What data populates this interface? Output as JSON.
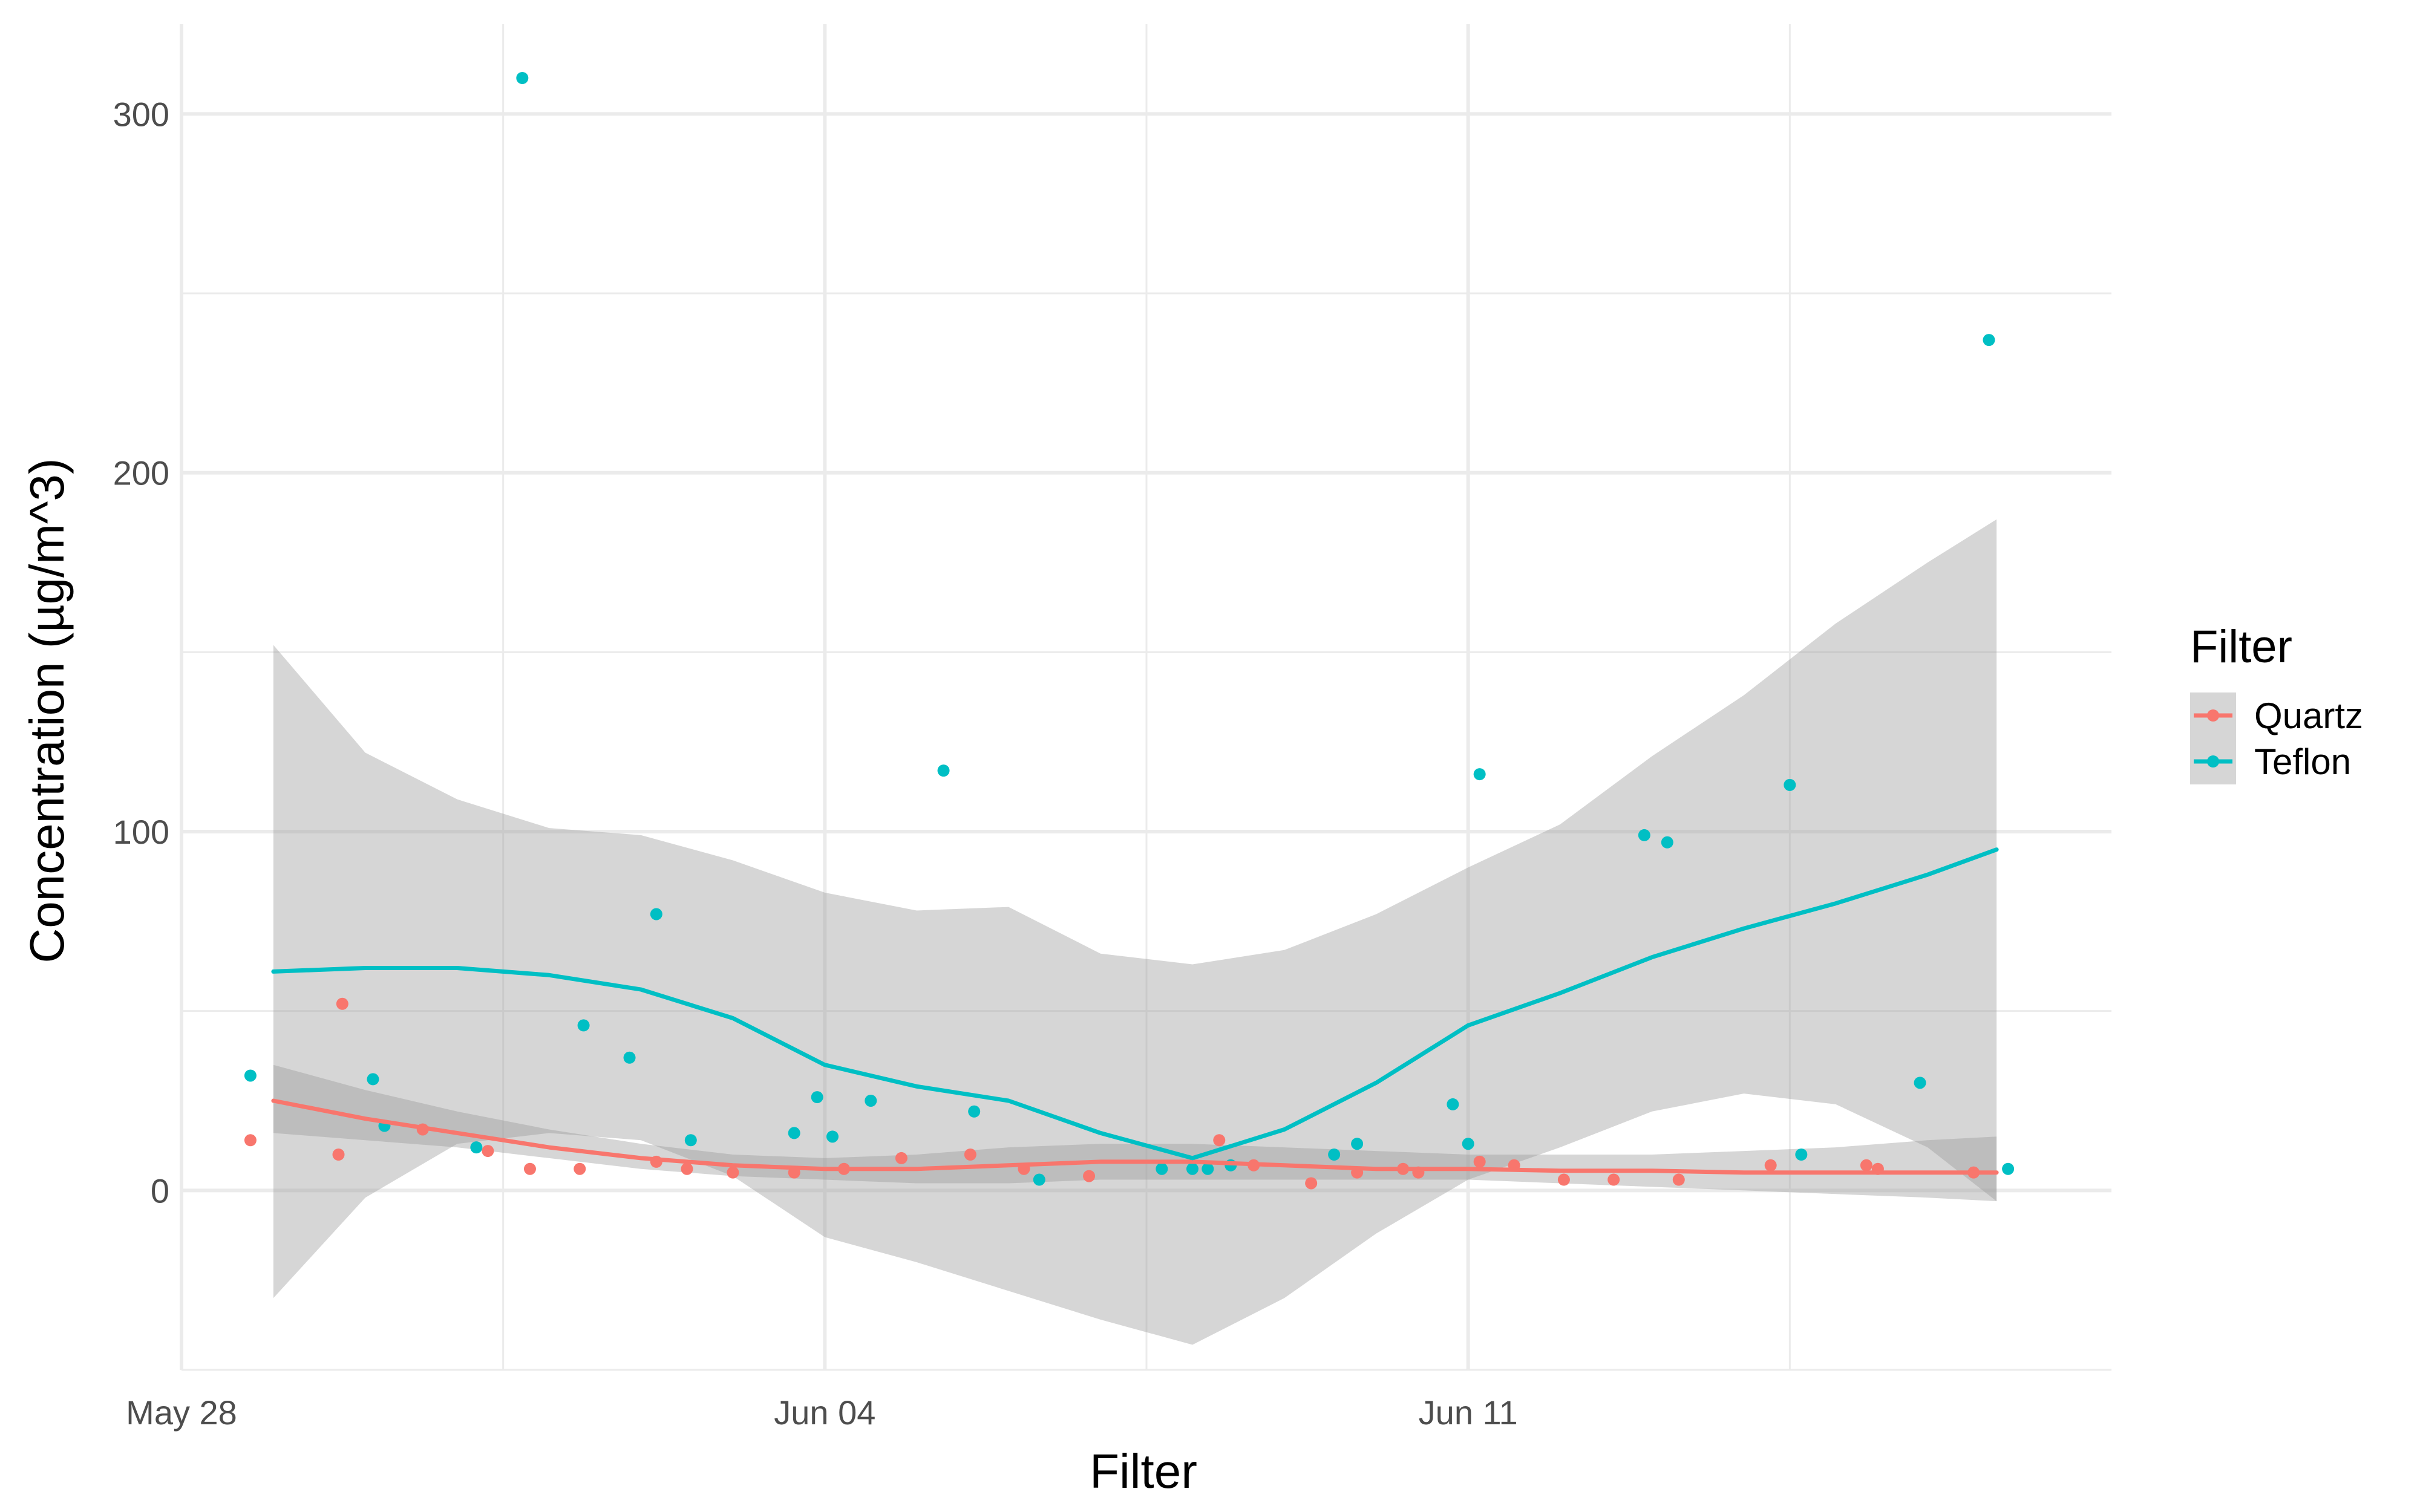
{
  "chart_data": {
    "type": "scatter",
    "title": "",
    "xlabel": "Filter",
    "ylabel": "Concentration (µg/m^3)",
    "x_type": "date",
    "xlim": [
      "2025-05-28",
      "2025-06-18"
    ],
    "ylim": [
      -50,
      325
    ],
    "x_ticks": [
      "2025-05-28",
      "2025-06-04",
      "2025-06-11"
    ],
    "x_tick_labels": [
      "May 28",
      "Jun 04",
      "Jun 11"
    ],
    "y_ticks": [
      0,
      100,
      200,
      300
    ],
    "y_tick_labels": [
      "0",
      "100",
      "200",
      "300"
    ],
    "grid": true,
    "legend": {
      "title": "Filter",
      "position": "right",
      "entries": [
        "Quartz",
        "Teflon"
      ]
    },
    "series": [
      {
        "name": "Quartz",
        "color": "#F8766D",
        "points": [
          {
            "x": "2025-05-28T18:00",
            "y": 14
          },
          {
            "x": "2025-05-29T17:00",
            "y": 10
          },
          {
            "x": "2025-05-29T18:00",
            "y": 52
          },
          {
            "x": "2025-05-30T15:00",
            "y": 17
          },
          {
            "x": "2025-05-31T08:00",
            "y": 11
          },
          {
            "x": "2025-05-31T19:00",
            "y": 6
          },
          {
            "x": "2025-06-01T08:00",
            "y": 6
          },
          {
            "x": "2025-06-02T04:00",
            "y": 8
          },
          {
            "x": "2025-06-02T12:00",
            "y": 6
          },
          {
            "x": "2025-06-03T00:00",
            "y": 5
          },
          {
            "x": "2025-06-03T16:00",
            "y": 5
          },
          {
            "x": "2025-06-04T05:00",
            "y": 6
          },
          {
            "x": "2025-06-04T20:00",
            "y": 9
          },
          {
            "x": "2025-06-05T14:00",
            "y": 10
          },
          {
            "x": "2025-06-06T04:00",
            "y": 6
          },
          {
            "x": "2025-06-06T21:00",
            "y": 4
          },
          {
            "x": "2025-06-08T07:00",
            "y": 14
          },
          {
            "x": "2025-06-08T16:00",
            "y": 7
          },
          {
            "x": "2025-06-09T07:00",
            "y": 2
          },
          {
            "x": "2025-06-09T19:00",
            "y": 5
          },
          {
            "x": "2025-06-10T07:00",
            "y": 6
          },
          {
            "x": "2025-06-10T11:00",
            "y": 5
          },
          {
            "x": "2025-06-11T03:00",
            "y": 8
          },
          {
            "x": "2025-06-11T12:00",
            "y": 7
          },
          {
            "x": "2025-06-12T01:00",
            "y": 3
          },
          {
            "x": "2025-06-12T14:00",
            "y": 3
          },
          {
            "x": "2025-06-13T07:00",
            "y": 3
          },
          {
            "x": "2025-06-14T07:00",
            "y": 7
          },
          {
            "x": "2025-06-15T08:00",
            "y": 7
          },
          {
            "x": "2025-06-15T11:00",
            "y": 6
          },
          {
            "x": "2025-06-16T12:00",
            "y": 5
          }
        ],
        "smooth_x": [
          "2025-05-29T00:00",
          "2025-05-30T00:00",
          "2025-05-31T00:00",
          "2025-06-01T00:00",
          "2025-06-02T00:00",
          "2025-06-03T00:00",
          "2025-06-04T00:00",
          "2025-06-05T00:00",
          "2025-06-06T00:00",
          "2025-06-07T00:00",
          "2025-06-08T00:00",
          "2025-06-09T00:00",
          "2025-06-10T00:00",
          "2025-06-11T00:00",
          "2025-06-12T00:00",
          "2025-06-13T00:00",
          "2025-06-14T00:00",
          "2025-06-15T00:00",
          "2025-06-16T00:00",
          "2025-06-16T18:00"
        ],
        "smooth_y": [
          25,
          20,
          16,
          12,
          9,
          7,
          6,
          6,
          7,
          8,
          8,
          7,
          6,
          6,
          5.5,
          5.5,
          5,
          5,
          5,
          5
        ],
        "ci_lower": [
          16,
          14,
          12,
          9,
          6,
          4,
          3,
          2,
          2,
          3,
          3,
          3,
          3,
          3,
          2,
          1,
          0,
          -1,
          -2,
          -3
        ],
        "ci_upper": [
          35,
          28,
          22,
          17,
          13,
          10,
          9,
          10,
          12,
          13,
          13,
          12,
          11,
          10,
          10,
          10,
          11,
          12,
          14,
          15
        ]
      },
      {
        "name": "Teflon",
        "color": "#00BFC4",
        "points": [
          {
            "x": "2025-05-28T18:00",
            "y": 32
          },
          {
            "x": "2025-05-30T02:00",
            "y": 31
          },
          {
            "x": "2025-05-30T05:00",
            "y": 18
          },
          {
            "x": "2025-05-31T05:00",
            "y": 12
          },
          {
            "x": "2025-05-31T17:00",
            "y": 310
          },
          {
            "x": "2025-06-01T09:00",
            "y": 46
          },
          {
            "x": "2025-06-01T21:00",
            "y": 37
          },
          {
            "x": "2025-06-02T04:00",
            "y": 77
          },
          {
            "x": "2025-06-02T13:00",
            "y": 14
          },
          {
            "x": "2025-06-03T16:00",
            "y": 16
          },
          {
            "x": "2025-06-03T22:00",
            "y": 26
          },
          {
            "x": "2025-06-04T02:00",
            "y": 15
          },
          {
            "x": "2025-06-04T12:00",
            "y": 25
          },
          {
            "x": "2025-06-05T07:00",
            "y": 117
          },
          {
            "x": "2025-06-05T15:00",
            "y": 22
          },
          {
            "x": "2025-06-06T08:00",
            "y": 3
          },
          {
            "x": "2025-06-07T16:00",
            "y": 6
          },
          {
            "x": "2025-06-08T00:00",
            "y": 6
          },
          {
            "x": "2025-06-08T04:00",
            "y": 6
          },
          {
            "x": "2025-06-08T10:00",
            "y": 7
          },
          {
            "x": "2025-06-09T13:00",
            "y": 10
          },
          {
            "x": "2025-06-09T19:00",
            "y": 13
          },
          {
            "x": "2025-06-10T20:00",
            "y": 24
          },
          {
            "x": "2025-06-11T00:00",
            "y": 13
          },
          {
            "x": "2025-06-11T03:00",
            "y": 116
          },
          {
            "x": "2025-06-12T22:00",
            "y": 99
          },
          {
            "x": "2025-06-13T04:00",
            "y": 97
          },
          {
            "x": "2025-06-14T12:00",
            "y": 113
          },
          {
            "x": "2025-06-14T15:00",
            "y": 10
          },
          {
            "x": "2025-06-15T22:00",
            "y": 30
          },
          {
            "x": "2025-06-16T16:00",
            "y": 237
          },
          {
            "x": "2025-06-16T21:00",
            "y": 6
          }
        ],
        "smooth_x": [
          "2025-05-29T00:00",
          "2025-05-30T00:00",
          "2025-05-31T00:00",
          "2025-06-01T00:00",
          "2025-06-02T00:00",
          "2025-06-03T00:00",
          "2025-06-04T00:00",
          "2025-06-05T00:00",
          "2025-06-06T00:00",
          "2025-06-07T00:00",
          "2025-06-08T00:00",
          "2025-06-09T00:00",
          "2025-06-10T00:00",
          "2025-06-11T00:00",
          "2025-06-12T00:00",
          "2025-06-13T00:00",
          "2025-06-14T00:00",
          "2025-06-15T00:00",
          "2025-06-16T00:00",
          "2025-06-16T18:00"
        ],
        "smooth_y": [
          61,
          62,
          62,
          60,
          56,
          48,
          35,
          29,
          25,
          16,
          9,
          17,
          30,
          46,
          55,
          65,
          73,
          80,
          88,
          95
        ],
        "ci_lower": [
          -30,
          -2,
          13,
          16,
          14,
          4,
          -13,
          -20,
          -28,
          -36,
          -43,
          -30,
          -12,
          3,
          12,
          22,
          27,
          24,
          12,
          -3
        ],
        "ci_upper": [
          152,
          122,
          109,
          101,
          99,
          92,
          83,
          78,
          79,
          66,
          63,
          67,
          77,
          90,
          102,
          121,
          138,
          158,
          175,
          187
        ]
      }
    ]
  }
}
